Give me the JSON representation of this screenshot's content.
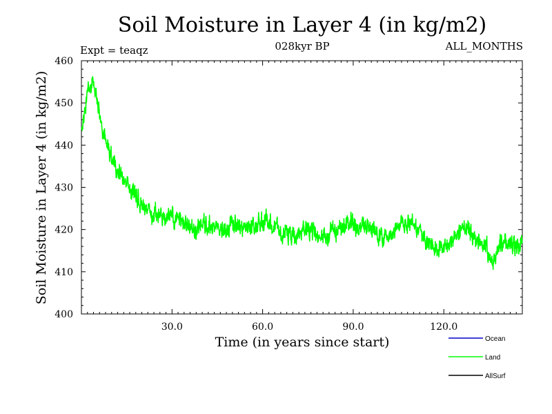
{
  "chart_data": {
    "type": "line",
    "title": "Soil Moisture in Layer 4 (in kg/m2)",
    "subtitle_left": "Expt = teaqz",
    "subtitle_center": "028kyr BP",
    "subtitle_right": "ALL_MONTHS",
    "xlabel": "Time (in years since start)",
    "ylabel": "Soil Moisture in Layer 4 (in kg/m2)",
    "xlim": [
      0,
      146
    ],
    "ylim": [
      400,
      460
    ],
    "x_ticks": [
      30,
      60,
      90,
      120
    ],
    "x_tick_labels": [
      "30.0",
      "60.0",
      "90.0",
      "120.0"
    ],
    "y_ticks": [
      400,
      410,
      420,
      430,
      440,
      450,
      460
    ],
    "y_tick_labels": [
      "400",
      "410",
      "420",
      "430",
      "440",
      "450",
      "460"
    ],
    "legend_position": "bottom-right, outside plot",
    "legend": [
      {
        "name": "Ocean",
        "color": "#0000cc"
      },
      {
        "name": "Land",
        "color": "#00ff00"
      },
      {
        "name": "AllSurf",
        "color": "#000000"
      }
    ],
    "series": [
      {
        "name": "Land",
        "color": "#00ff00",
        "x": [
          0,
          2,
          4,
          6,
          8,
          10,
          12,
          14,
          16,
          18,
          20,
          22,
          24,
          26,
          28,
          30,
          32,
          34,
          36,
          38,
          40,
          42,
          44,
          46,
          48,
          50,
          52,
          54,
          56,
          58,
          60,
          62,
          64,
          66,
          68,
          70,
          72,
          74,
          76,
          78,
          80,
          82,
          84,
          86,
          88,
          90,
          92,
          94,
          96,
          98,
          100,
          102,
          104,
          106,
          108,
          110,
          112,
          114,
          116,
          118,
          120,
          122,
          124,
          126,
          128,
          130,
          132,
          134,
          136,
          138,
          140,
          142,
          144,
          146
        ],
        "values": [
          443,
          452,
          455,
          447,
          441,
          437,
          434,
          432,
          430,
          428,
          426,
          424,
          424,
          423,
          423,
          423,
          422,
          421,
          421,
          420,
          421,
          421,
          421,
          420,
          420,
          421,
          420,
          420,
          420,
          421,
          422,
          422,
          421,
          419,
          419,
          418,
          419,
          420,
          420,
          419,
          418,
          419,
          420,
          420,
          422,
          421,
          420,
          421,
          421,
          419,
          418,
          419,
          421,
          422,
          421,
          421,
          420,
          417,
          416,
          416,
          417,
          417,
          419,
          420,
          420,
          418,
          417,
          416,
          413,
          415,
          417,
          417,
          415,
          417
        ]
      }
    ]
  }
}
